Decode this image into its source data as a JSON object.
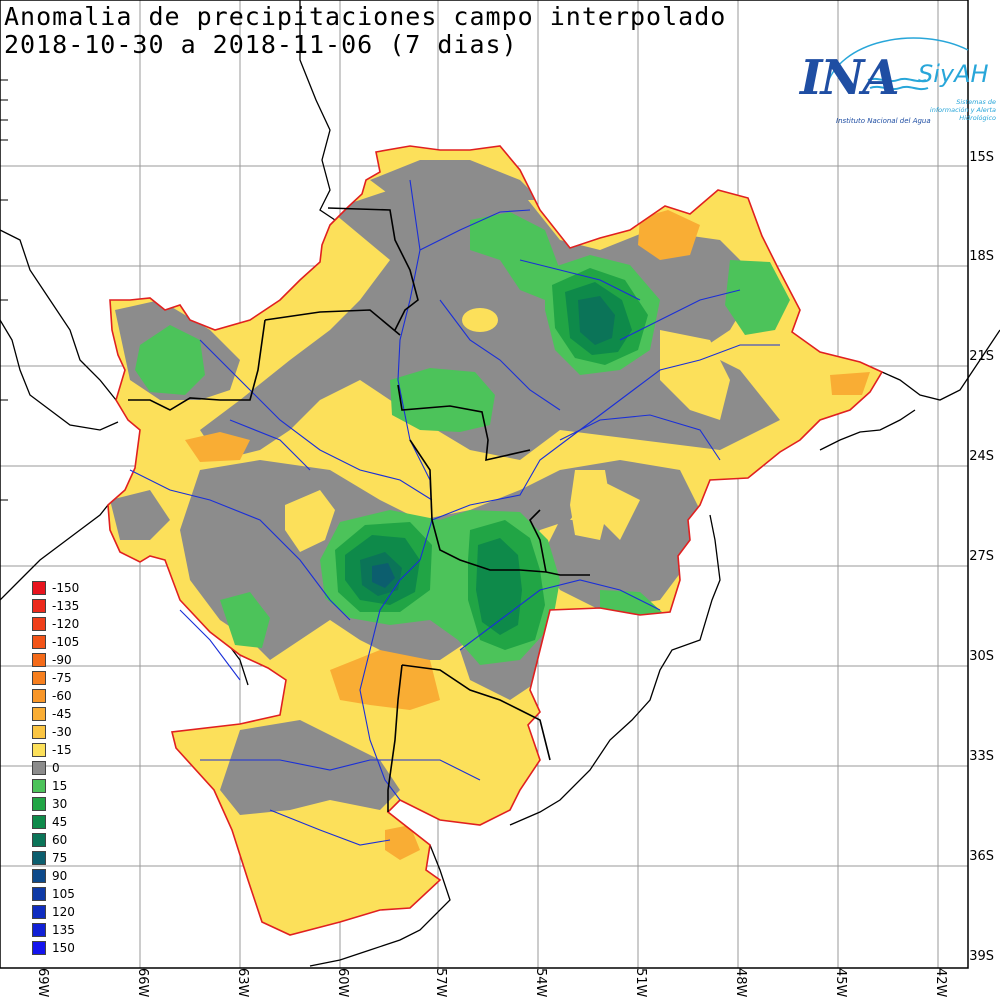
{
  "title": {
    "line1": "Anomalia de precipitaciones campo interpolado",
    "line2": "2018-10-30 a 2018-11-06 (7 dias)"
  },
  "logo": {
    "name": "INA",
    "brand": "SiyAH",
    "subtitle": "Instituto Nacional del Agua",
    "tagline": "Sistemas de información y Alerta Hidrológico"
  },
  "latitude_labels": [
    "15S",
    "18S",
    "21S",
    "24S",
    "27S",
    "30S",
    "33S",
    "36S",
    "39S"
  ],
  "longitude_labels": [
    "69W",
    "66W",
    "63W",
    "60W",
    "57W",
    "54W",
    "51W",
    "48W",
    "45W",
    "42W"
  ],
  "legend": [
    {
      "value": "-150",
      "color": "#e8141e"
    },
    {
      "value": "-135",
      "color": "#ec2a1c"
    },
    {
      "value": "-120",
      "color": "#ef3f1a"
    },
    {
      "value": "-105",
      "color": "#f25418"
    },
    {
      "value": "-90",
      "color": "#f46a18"
    },
    {
      "value": "-75",
      "color": "#f67f1e"
    },
    {
      "value": "-60",
      "color": "#f89628"
    },
    {
      "value": "-45",
      "color": "#f9ad34"
    },
    {
      "value": "-30",
      "color": "#fbc542"
    },
    {
      "value": "-15",
      "color": "#fce05a"
    },
    {
      "value": "0",
      "color": "#8c8c8c"
    },
    {
      "value": "15",
      "color": "#4cc35a"
    },
    {
      "value": "30",
      "color": "#21a545"
    },
    {
      "value": "45",
      "color": "#0e8a4a"
    },
    {
      "value": "60",
      "color": "#0b7458"
    },
    {
      "value": "75",
      "color": "#0c5e6e"
    },
    {
      "value": "90",
      "color": "#0d4a8a"
    },
    {
      "value": "105",
      "color": "#0e3aa6"
    },
    {
      "value": "120",
      "color": "#0f2cc0"
    },
    {
      "value": "135",
      "color": "#1020d6"
    },
    {
      "value": "150",
      "color": "#1414ee"
    }
  ]
}
